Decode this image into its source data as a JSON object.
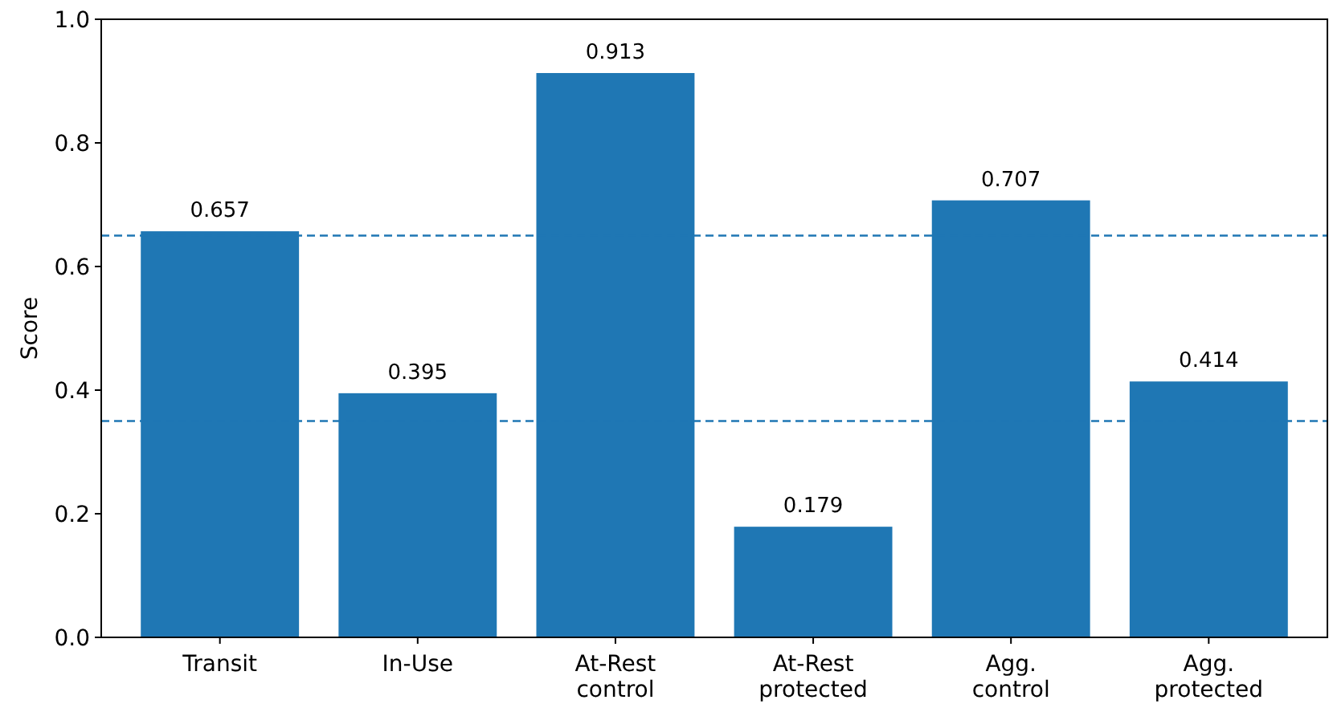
{
  "chart_data": {
    "type": "bar",
    "ylabel": "Score",
    "categories": [
      "Transit",
      "In-Use",
      "At-Rest\ncontrol",
      "At-Rest\nprotected",
      "Agg.\ncontrol",
      "Agg.\nprotected"
    ],
    "values": [
      0.657,
      0.395,
      0.913,
      0.179,
      0.707,
      0.414
    ],
    "color": "#1f77b4",
    "data_labels": true,
    "ylim": [
      0,
      1
    ],
    "yticks": [
      {
        "value": 0,
        "label": "0.0"
      },
      {
        "value": 0.2,
        "label": "0.2"
      },
      {
        "value": 0.4,
        "label": "0.4"
      },
      {
        "value": 0.6,
        "label": "0.6"
      },
      {
        "value": 0.8,
        "label": "0.8"
      },
      {
        "value": 1,
        "label": "1.0"
      }
    ],
    "ref_lines": [
      {
        "axis": "y",
        "value": 0.65,
        "color": "#1f77b4",
        "line_style": "dashed"
      },
      {
        "axis": "y",
        "value": 0.35,
        "color": "#1f77b4",
        "line_style": "dashed"
      }
    ],
    "grid": false
  }
}
